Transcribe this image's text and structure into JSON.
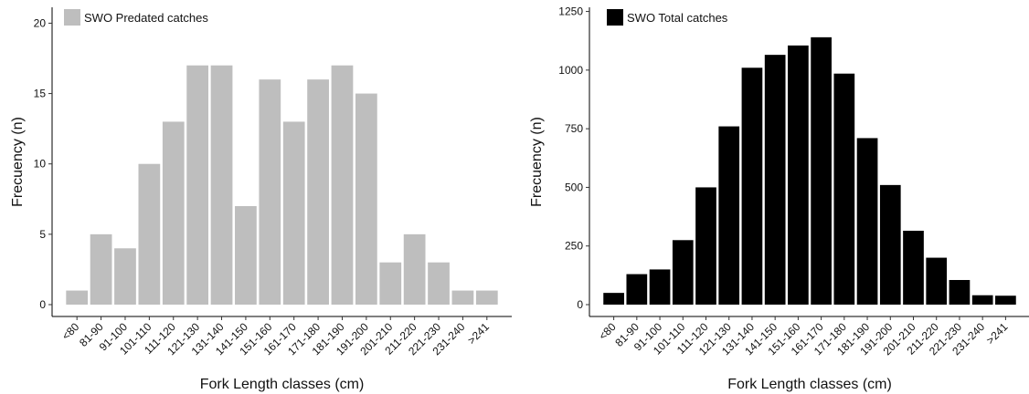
{
  "chart_data": [
    {
      "type": "bar",
      "legend": "SWO Predated catches",
      "legend_position": "top-left",
      "color": "#bebebe",
      "xlabel": "Fork Length classes (cm)",
      "ylabel": "Frecuency (n)",
      "ylim": [
        0,
        21
      ],
      "yticks": [
        0,
        5,
        10,
        15,
        20
      ],
      "grid": false,
      "categories": [
        "<80",
        "81-90",
        "91-100",
        "101-110",
        "111-120",
        "121-130",
        "131-140",
        "141-150",
        "151-160",
        "161-170",
        "171-180",
        "181-190",
        "191-200",
        "201-210",
        "211-220",
        "221-230",
        "231-240",
        ">241"
      ],
      "values": [
        1,
        5,
        4,
        10,
        13,
        17,
        17,
        7,
        16,
        13,
        16,
        17,
        15,
        3,
        5,
        3,
        1,
        1
      ]
    },
    {
      "type": "bar",
      "legend": "SWO Total catches",
      "legend_position": "top-left",
      "color": "#000000",
      "xlabel": "Fork Length classes (cm)",
      "ylabel": "Frecuency (n)",
      "ylim": [
        0,
        1260
      ],
      "yticks": [
        0,
        250,
        500,
        750,
        1000,
        1250
      ],
      "grid": false,
      "categories": [
        "<80",
        "81-90",
        "91-100",
        "101-110",
        "111-120",
        "121-130",
        "131-140",
        "141-150",
        "151-160",
        "161-170",
        "171-180",
        "181-190",
        "191-200",
        "201-210",
        "211-220",
        "221-230",
        "231-240",
        ">241"
      ],
      "values": [
        50,
        130,
        150,
        275,
        500,
        760,
        1010,
        1065,
        1105,
        1140,
        985,
        710,
        510,
        315,
        200,
        105,
        40,
        38
      ]
    }
  ]
}
